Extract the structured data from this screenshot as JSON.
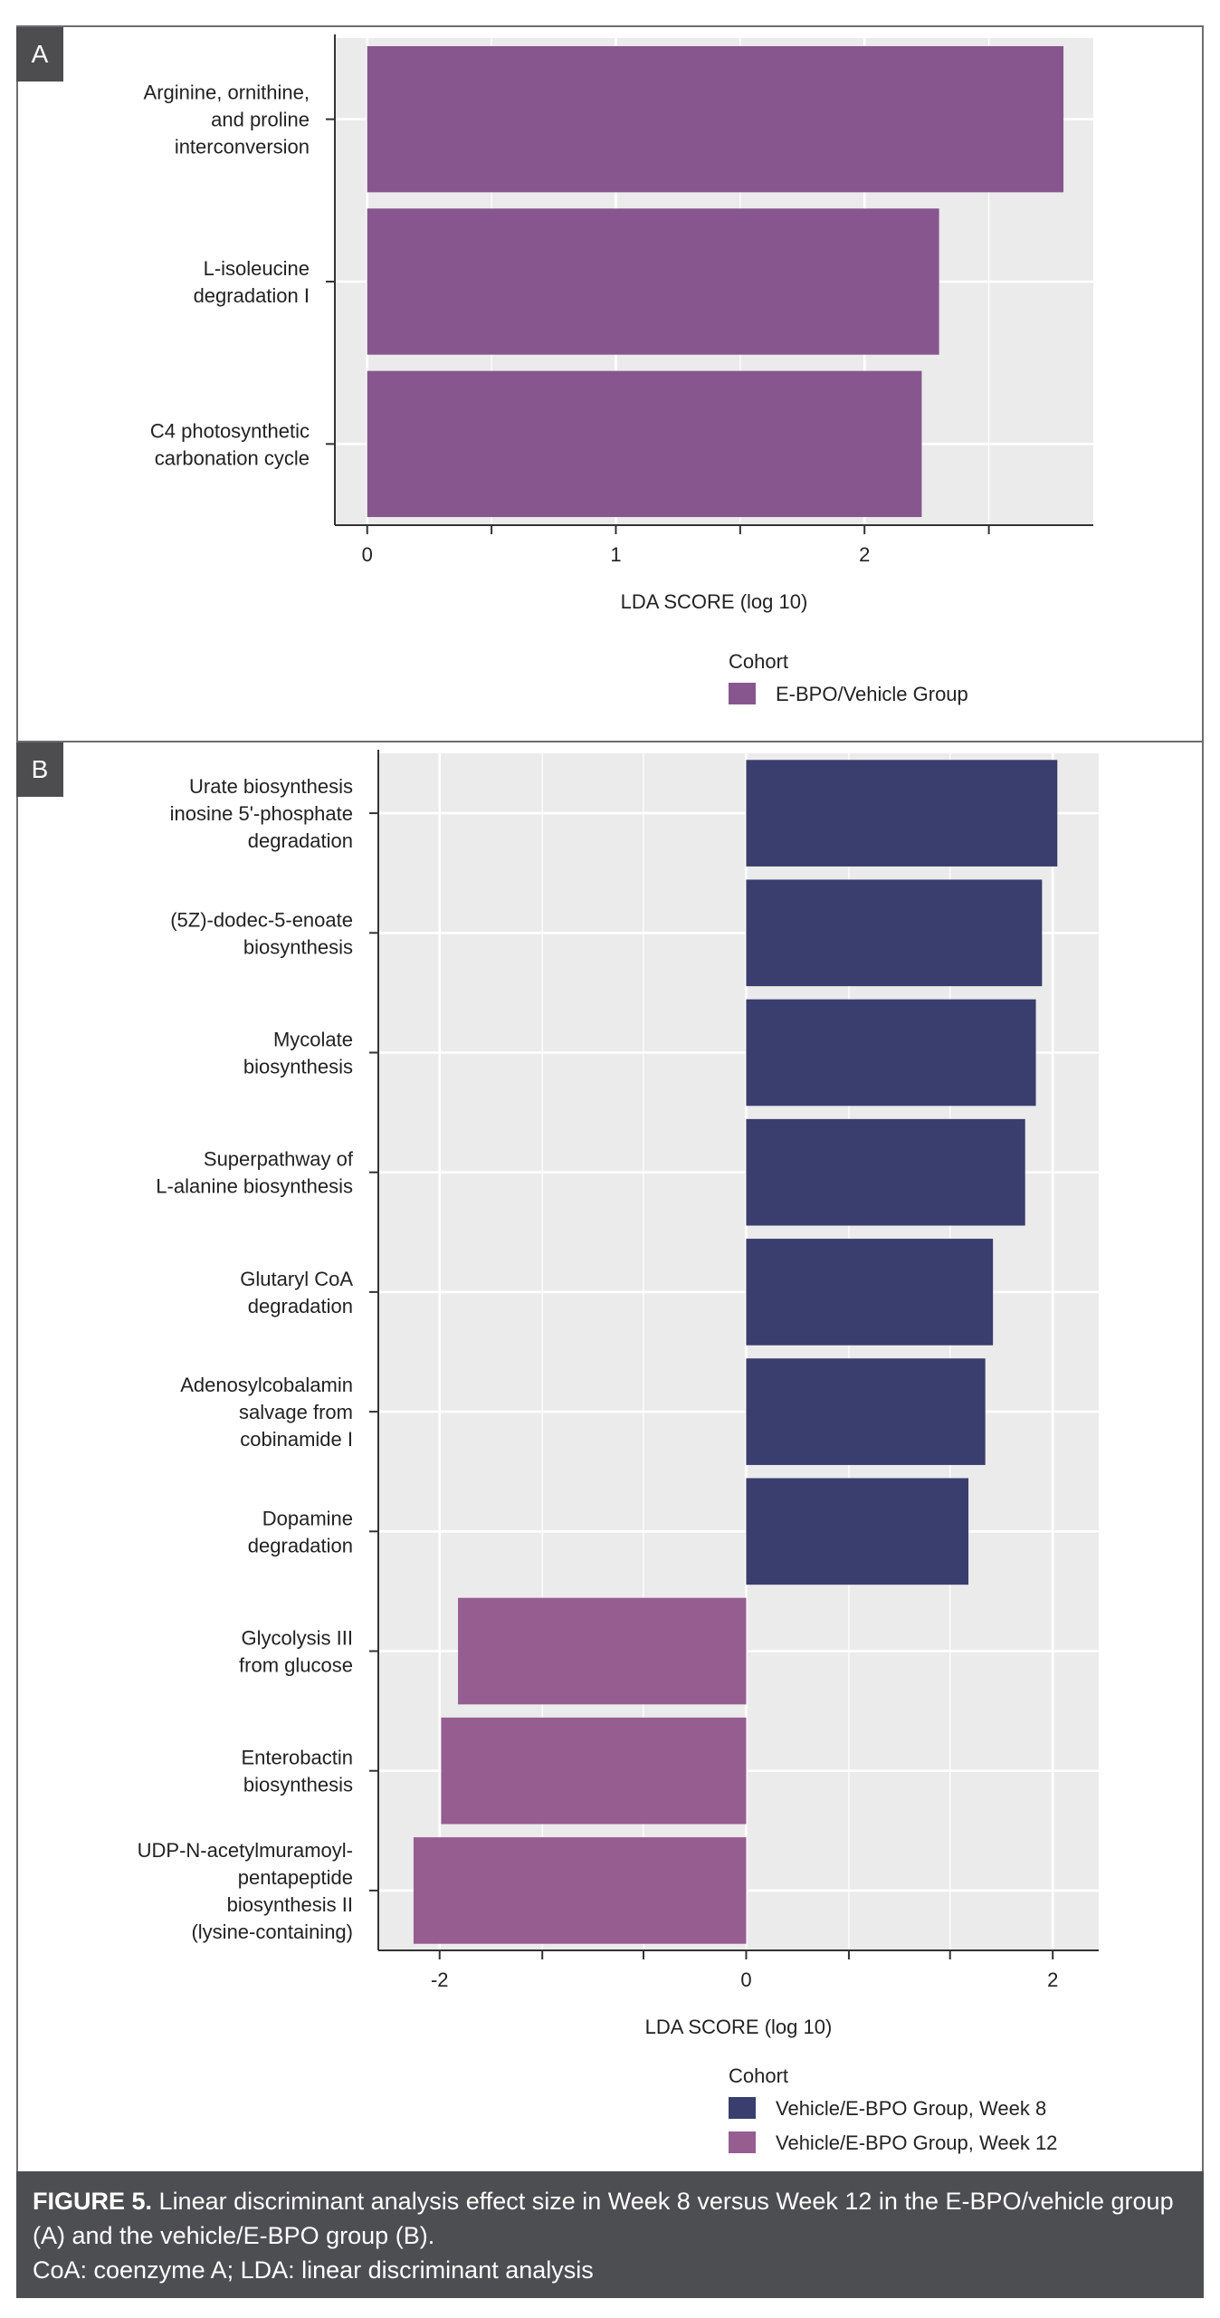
{
  "figure": {
    "caption_label": "FIGURE 5.",
    "caption_text": "Linear discriminant analysis effect size in Week 8 versus Week 12 in the E-BPO/vehicle group (A) and the vehicle/E-BPO group (B).",
    "abbreviations": "CoA: coenzyme A; LDA: linear discriminant analysis"
  },
  "colors": {
    "purple": "#87568f",
    "navy": "#393e6e",
    "panel_bg": "#ebebeb"
  },
  "chart_data": [
    {
      "panel": "A",
      "type": "bar",
      "orientation": "horizontal",
      "categories": [
        "Arginine, ornithine, and proline interconversion",
        "L-isoleucine degradation I",
        "C4 photosynthetic carbonation cycle"
      ],
      "category_lines": [
        [
          "Arginine, ornithine,",
          "and proline",
          "interconversion"
        ],
        [
          "L-isoleucine",
          "degradation I"
        ],
        [
          "C4 photosynthetic",
          "carbonation cycle"
        ]
      ],
      "values": [
        2.8,
        2.3,
        2.23
      ],
      "groups": [
        "E-BPO/Vehicle Group",
        "E-BPO/Vehicle Group",
        "E-BPO/Vehicle Group"
      ],
      "xlabel": "LDA SCORE (log 10)",
      "xlim": [
        -0.13,
        2.92
      ],
      "xticks": [
        0,
        1,
        2
      ],
      "minor_ticks": [
        0.5,
        1.5,
        2.5
      ],
      "grid": true,
      "legend_title": "Cohort",
      "legend": [
        {
          "name": "E-BPO/Vehicle Group",
          "color": "#87568f"
        }
      ],
      "legend_position": "bottom"
    },
    {
      "panel": "B",
      "type": "bar",
      "orientation": "horizontal",
      "categories": [
        "Urate biosynthesis inosine 5'-phosphate degradation",
        "(5Z)-dodec-5-enoate biosynthesis",
        "Mycolate biosynthesis",
        "Superpathway of L-alanine biosynthesis",
        "Glutaryl CoA degradation",
        "Adenosylcobalamin salvage from cobinamide I",
        "Dopamine degradation",
        "Glycolysis III from glucose",
        "Enterobactin biosynthesis",
        "UDP-N-acetylmuramoyl-pentapeptide biosynthesis II (lysine-containing)"
      ],
      "category_lines": [
        [
          "Urate biosynthesis",
          "inosine 5'-phosphate",
          "degradation"
        ],
        [
          "(5Z)-dodec-5-enoate",
          "biosynthesis"
        ],
        [
          "Mycolate",
          "biosynthesis"
        ],
        [
          "Superpathway of",
          "L-alanine biosynthesis"
        ],
        [
          "Glutaryl CoA",
          "degradation"
        ],
        [
          "Adenosylcobalamin",
          "salvage from",
          "cobinamide I"
        ],
        [
          "Dopamine",
          "degradation"
        ],
        [
          "Glycolysis III",
          "from glucose"
        ],
        [
          "Enterobactin",
          "biosynthesis"
        ],
        [
          "UDP-N-acetylmuramoyl-",
          "pentapeptide",
          "biosynthesis II",
          "(lysine-containing)"
        ]
      ],
      "values": [
        2.03,
        1.93,
        1.89,
        1.82,
        1.61,
        1.56,
        1.45,
        -1.88,
        -1.99,
        -2.17
      ],
      "groups": [
        "Vehicle/E-BPO Group, Week 8",
        "Vehicle/E-BPO Group, Week 8",
        "Vehicle/E-BPO Group, Week 8",
        "Vehicle/E-BPO Group, Week 8",
        "Vehicle/E-BPO Group, Week 8",
        "Vehicle/E-BPO Group, Week 8",
        "Vehicle/E-BPO Group, Week 8",
        "Vehicle/E-BPO Group, Week 12",
        "Vehicle/E-BPO Group, Week 12",
        "Vehicle/E-BPO Group, Week 12"
      ],
      "xlabel": "LDA SCORE (log 10)",
      "xlim": [
        -2.4,
        2.3
      ],
      "xticks": [
        -2,
        0,
        2
      ],
      "minor_ticks": [
        -1.33,
        -0.67,
        0.67,
        1.33
      ],
      "grid": true,
      "legend_title": "Cohort",
      "legend": [
        {
          "name": "Vehicle/E-BPO Group, Week 8",
          "color": "#393e6e"
        },
        {
          "name": "Vehicle/E-BPO Group, Week 12",
          "color": "#965d91"
        }
      ],
      "legend_position": "bottom"
    }
  ]
}
